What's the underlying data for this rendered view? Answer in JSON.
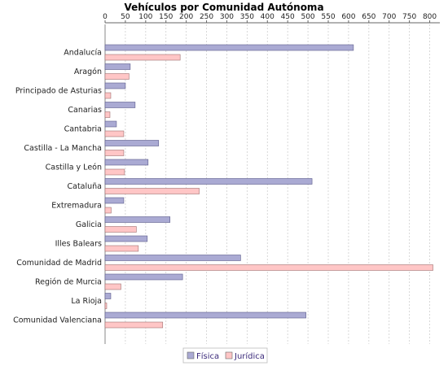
{
  "chart_data": {
    "type": "bar",
    "orientation": "horizontal",
    "title": "Vehículos por Comunidad Autónoma",
    "categories": [
      "Andalucía",
      "Aragón",
      "Principado de Asturias",
      "Canarias",
      "Cantabria",
      "Castilla - La Mancha",
      "Castilla y León",
      "Cataluña",
      "Extremadura",
      "Galicia",
      "Illes Balears",
      "Comunidad de Madrid",
      "Región de Murcia",
      "La Rioja",
      "Comunidad Valenciana"
    ],
    "series": [
      {
        "name": "Física",
        "color": "#aaaad3",
        "values": [
          612,
          62,
          50,
          74,
          28,
          132,
          106,
          510,
          46,
          160,
          104,
          334,
          191,
          14,
          495
        ]
      },
      {
        "name": "Jurídica",
        "color": "#ffc6c6",
        "values": [
          185,
          59,
          14,
          12,
          46,
          46,
          48,
          232,
          15,
          77,
          82,
          808,
          39,
          4,
          142
        ]
      }
    ],
    "xlim": [
      0,
      825
    ],
    "xticks": [
      0,
      50,
      100,
      150,
      200,
      250,
      300,
      350,
      400,
      450,
      500,
      550,
      600,
      650,
      700,
      750,
      800
    ],
    "grid": true,
    "legend_position": "bottom"
  }
}
